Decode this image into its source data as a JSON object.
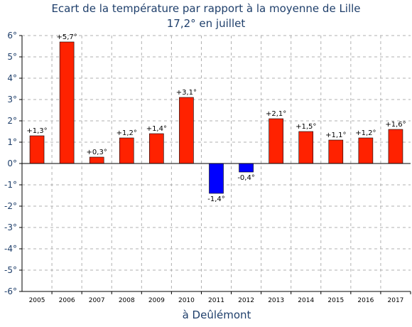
{
  "chart_data": {
    "type": "bar",
    "title": "Ecart de la température par rapport à la moyenne de Lille",
    "subtitle": "17,2° en juillet",
    "xlabel": "à Deûlémont",
    "ylabel": "",
    "ylim": [
      -6,
      6
    ],
    "yticks": [
      6,
      5,
      4,
      3,
      2,
      1,
      0,
      -1,
      -2,
      -3,
      -4,
      -5,
      -6
    ],
    "ytick_labels": [
      "6°",
      "5°",
      "4°",
      "3°",
      "2°",
      "1°",
      "0°",
      "-1°",
      "-2°",
      "-3°",
      "-4°",
      "-5°",
      "-6°"
    ],
    "categories": [
      "2005",
      "2006",
      "2007",
      "2008",
      "2009",
      "2010",
      "2011",
      "2012",
      "2013",
      "2014",
      "2015",
      "2016",
      "2017"
    ],
    "values": [
      1.3,
      5.7,
      0.3,
      1.2,
      1.4,
      3.1,
      -1.4,
      -0.4,
      2.1,
      1.5,
      1.1,
      1.2,
      1.6
    ],
    "data_labels": [
      "+1,3°",
      "+5,7°",
      "+0,3°",
      "+1,2°",
      "+1,4°",
      "+3,1°",
      "-1,4°",
      "-0,4°",
      "+2,1°",
      "+1,5°",
      "+1,1°",
      "+1,2°",
      "+1,6°"
    ],
    "grid": true,
    "colors": {
      "positive": "#ff2200",
      "negative": "#0000ff",
      "bar_edge": "#000000",
      "title": "#1f3f6b",
      "grid": "#b0b0b0"
    }
  }
}
